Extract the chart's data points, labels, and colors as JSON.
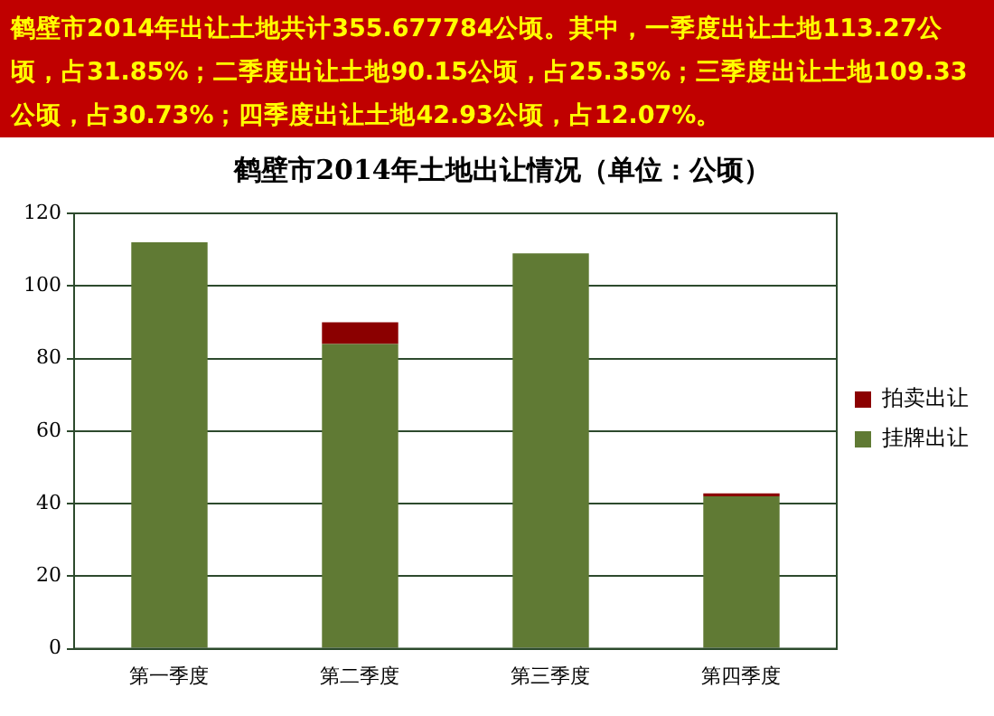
{
  "chart_data": {
    "type": "bar",
    "stacked": true,
    "title": "鹤壁市2014年土地出让情况（单位：公顷）",
    "annotations": [
      "鹤壁市2014年出让土地共计355.677784公顷。其中，一季度出让土地113.27公顷，占31.85%；二季度出让土地90.15公顷，占25.35%；三季度出让土地109.33公顷，占30.73%；四季度出让土地42.93公顷，占12.07%。"
    ],
    "categories": [
      "第一季度",
      "第二季度",
      "第三季度",
      "第四季度"
    ],
    "series": [
      {
        "name": "挂牌出让",
        "color": "#607a34",
        "values": [
          112,
          84,
          109,
          42
        ]
      },
      {
        "name": "拍卖出让",
        "color": "#8b0000",
        "values": [
          0,
          6,
          0,
          0.8
        ]
      }
    ],
    "ylim": [
      0,
      120
    ],
    "yticks": [
      0,
      20,
      40,
      60,
      80,
      100,
      120
    ],
    "grid": "y",
    "legend": "right"
  }
}
